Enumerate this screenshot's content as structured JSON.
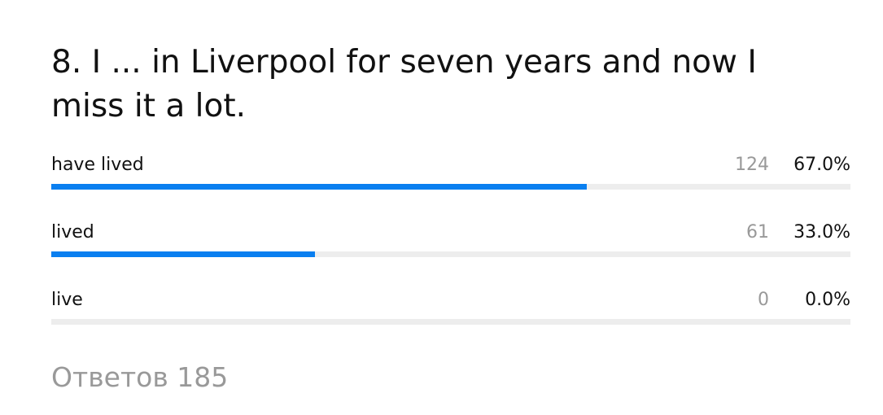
{
  "question": "8. I ... in Liverpool for seven years and now I miss it a lot.",
  "options": [
    {
      "label": "have lived",
      "count": 124,
      "percent": {
        "value": 67.0,
        "label": "67.0%"
      }
    },
    {
      "label": "lived",
      "count": 61,
      "percent": {
        "value": 33.0,
        "label": "33.0%"
      }
    },
    {
      "label": "live",
      "count": 0,
      "percent": {
        "value": 0.0,
        "label": "0.0%"
      }
    }
  ],
  "footer": "Ответов 185"
}
